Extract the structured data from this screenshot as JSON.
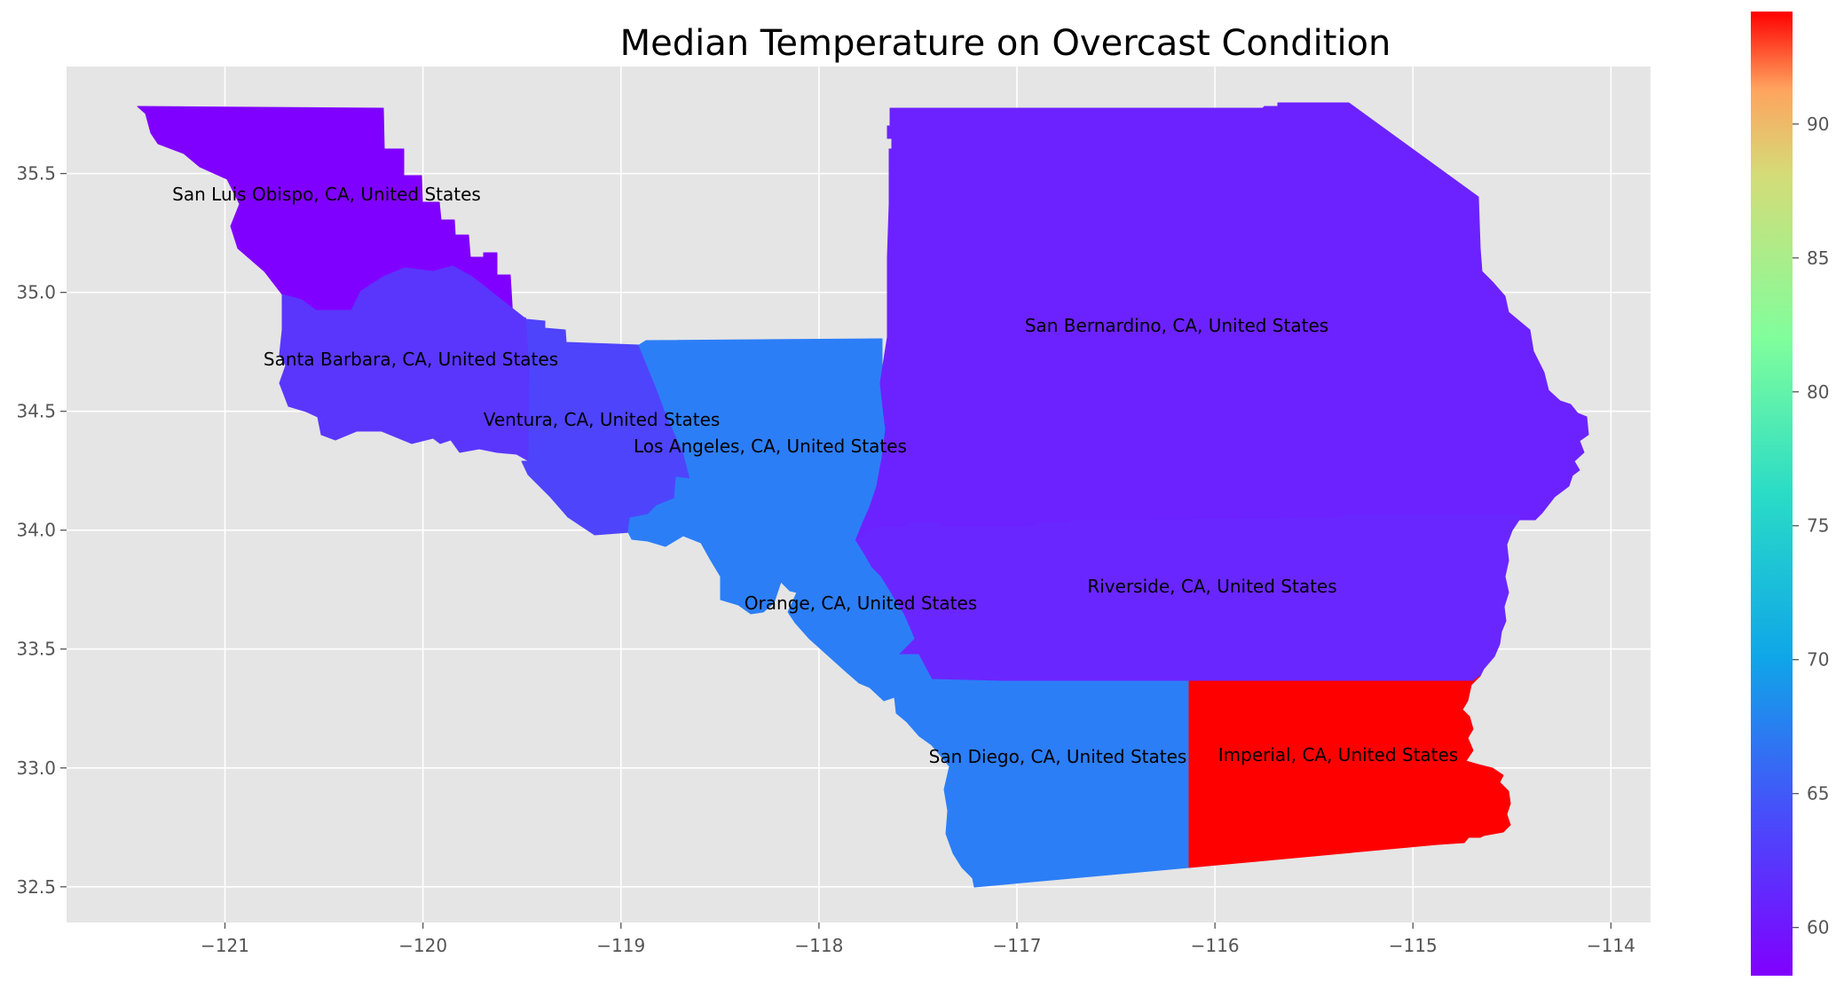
{
  "title": "Median Temperature on Overcast Condition",
  "chart_data": {
    "type": "choropleth",
    "title": "Median Temperature on Overcast Condition",
    "xlabel": "",
    "ylabel": "",
    "xlim": [
      -121.8,
      -113.8
    ],
    "ylim": [
      32.35,
      35.95
    ],
    "x_ticks": [
      -121,
      -120,
      -119,
      -118,
      -117,
      -116,
      -115,
      -114
    ],
    "y_ticks": [
      32.5,
      33.0,
      33.5,
      34.0,
      34.5,
      35.0,
      35.5
    ],
    "x_tick_labels": [
      "−121",
      "−120",
      "−119",
      "−118",
      "−117",
      "−116",
      "−115",
      "−114"
    ],
    "y_tick_labels": [
      "32.5",
      "33.0",
      "33.5",
      "34.0",
      "34.5",
      "35.0",
      "35.5"
    ],
    "grid": true,
    "colormap": "rainbow",
    "colorbar": {
      "range": [
        58.2,
        94.2
      ],
      "ticks": [
        60,
        65,
        70,
        75,
        80,
        85,
        90
      ],
      "tick_labels": [
        "60",
        "65",
        "70",
        "75",
        "80",
        "85",
        "90"
      ]
    },
    "regions": [
      {
        "name": "San Luis Obispo, CA, United States",
        "value": 58.5,
        "color": "#8000ff"
      },
      {
        "name": "Santa Barbara, CA, United States",
        "value": 61.0,
        "color": "#5a36fd"
      },
      {
        "name": "Ventura, CA, United States",
        "value": 61.5,
        "color": "#4e44fc"
      },
      {
        "name": "Los Angeles, CA, United States",
        "value": 64.5,
        "color": "#2c7ef7"
      },
      {
        "name": "San Bernardino, CA, United States",
        "value": 59.5,
        "color": "#6c22ff"
      },
      {
        "name": "Riverside, CA, United States",
        "value": 60.0,
        "color": "#6a26ff"
      },
      {
        "name": "Orange, CA, United States",
        "value": 64.5,
        "color": "#2c7ef7"
      },
      {
        "name": "San Diego, CA, United States",
        "value": 64.5,
        "color": "#2c7ef7"
      },
      {
        "name": "Imperial, CA, United States",
        "value": 94.0,
        "color": "#ff0000"
      }
    ]
  }
}
